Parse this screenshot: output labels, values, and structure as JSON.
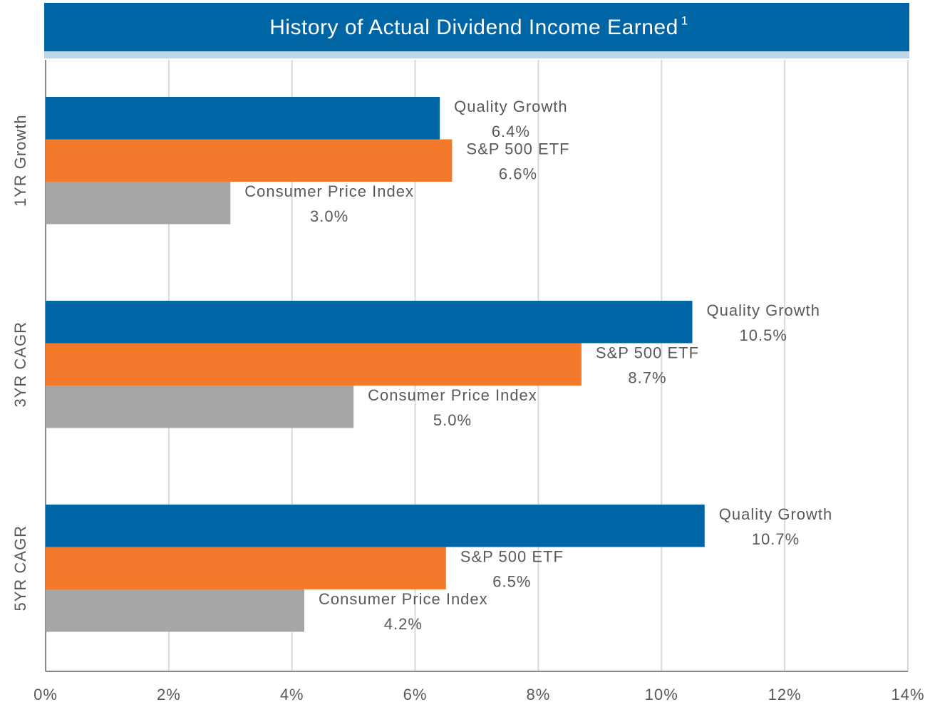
{
  "chart_data": {
    "type": "bar",
    "orientation": "horizontal",
    "title": "History of Actual Dividend Income Earned",
    "title_note": "1",
    "categories": [
      "1YR Growth",
      "3YR CAGR",
      "5YR CAGR"
    ],
    "series": [
      {
        "name": "Quality Growth",
        "color": "#0065a4",
        "values": [
          6.4,
          10.5,
          10.7
        ],
        "value_labels": [
          "6.4%",
          "10.5%",
          "10.7%"
        ]
      },
      {
        "name": "S&P 500 ETF",
        "color": "#f47a2b",
        "values": [
          6.6,
          8.7,
          6.5
        ],
        "value_labels": [
          "6.6%",
          "8.7%",
          "6.5%"
        ]
      },
      {
        "name": "Consumer Price Index",
        "color": "#a6a6a6",
        "values": [
          3.0,
          5.0,
          4.2
        ],
        "value_labels": [
          "3.0%",
          "5.0%",
          "4.2%"
        ]
      }
    ],
    "xlim": [
      0,
      14
    ],
    "xticks": [
      {
        "value": 0,
        "label": "0%"
      },
      {
        "value": 2,
        "label": "2%"
      },
      {
        "value": 4,
        "label": "4%"
      },
      {
        "value": 6,
        "label": "6%"
      },
      {
        "value": 8,
        "label": "8%"
      },
      {
        "value": 10,
        "label": "10%"
      },
      {
        "value": 12,
        "label": "12%"
      },
      {
        "value": 14,
        "label": "14%"
      }
    ],
    "grid": true
  }
}
